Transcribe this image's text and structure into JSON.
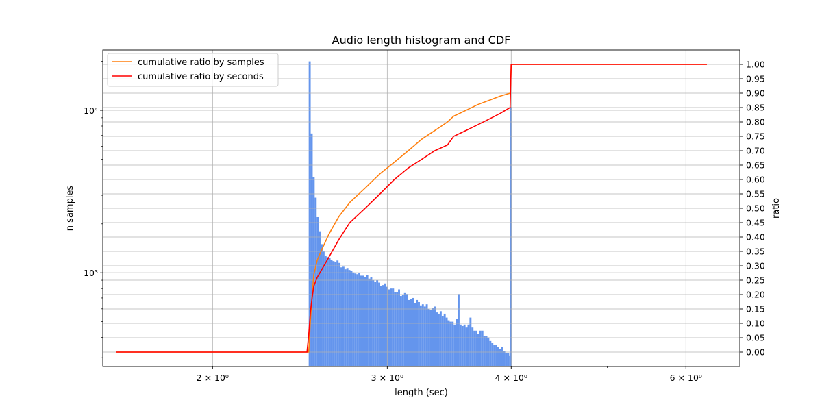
{
  "chart_data": {
    "type": "bar",
    "title": "Audio length histogram and CDF",
    "xlabel": "length (sec)",
    "ylabel": "n samples",
    "y2label": "ratio",
    "xscale": "log",
    "yscale": "log",
    "xlim": [
      1.55,
      6.8
    ],
    "ylim": [
      265,
      23500
    ],
    "y2lim": [
      -0.05,
      1.05
    ],
    "grid": true,
    "legend_position": "top-left",
    "x_ticks": [
      {
        "value": 2,
        "label": "2 × 10⁰"
      },
      {
        "value": 3,
        "label": "3 × 10⁰"
      },
      {
        "value": 4,
        "label": "4 × 10⁰"
      },
      {
        "value": 6,
        "label": "6 × 10⁰"
      }
    ],
    "x_minor_ticks": [
      5
    ],
    "y_ticks": [
      {
        "value": 1000,
        "label": "10³"
      },
      {
        "value": 10000,
        "label": "10⁴"
      }
    ],
    "y_minor_ticks": [
      300,
      400,
      500,
      600,
      700,
      800,
      900,
      2000,
      3000,
      4000,
      5000,
      6000,
      7000,
      8000,
      9000,
      20000
    ],
    "y2_ticks": [
      "0.00",
      "0.05",
      "0.10",
      "0.15",
      "0.20",
      "0.25",
      "0.30",
      "0.35",
      "0.40",
      "0.45",
      "0.50",
      "0.55",
      "0.60",
      "0.65",
      "0.70",
      "0.75",
      "0.80",
      "0.85",
      "0.90",
      "0.95",
      "1.00"
    ],
    "histogram": {
      "color": "#6495ED",
      "bin_edges": [
        2.5,
        4.0
      ],
      "bin_count": 102,
      "last_bin": {
        "x_start": 3.99,
        "x_end": 4.005,
        "count": 10500
      },
      "counts": [
        20000,
        7200,
        3900,
        2900,
        2200,
        1800,
        1500,
        1350,
        1270,
        1250,
        1230,
        1200,
        1180,
        1170,
        1190,
        1150,
        1080,
        1090,
        1050,
        1070,
        1040,
        1030,
        1005,
        990,
        980,
        1000,
        960,
        960,
        940,
        970,
        920,
        940,
        900,
        880,
        900,
        870,
        830,
        840,
        860,
        820,
        790,
        800,
        800,
        760,
        760,
        790,
        720,
        730,
        750,
        740,
        680,
        690,
        700,
        650,
        680,
        660,
        630,
        640,
        620,
        640,
        600,
        590,
        610,
        620,
        570,
        560,
        580,
        540,
        560,
        530,
        510,
        500,
        500,
        480,
        520,
        740,
        480,
        470,
        480,
        460,
        480,
        530,
        460,
        440,
        440,
        420,
        440,
        440,
        410,
        410,
        400,
        380,
        370,
        360,
        360,
        350,
        340,
        350,
        330,
        320,
        320,
        310
      ]
    },
    "series": [
      {
        "name": "cumulative ratio by samples",
        "color": "#ff7f0e",
        "axis": "right",
        "x": [
          1.6,
          2.5,
          2.51,
          2.52,
          2.53,
          2.55,
          2.58,
          2.62,
          2.68,
          2.75,
          2.85,
          2.95,
          3.05,
          3.15,
          3.25,
          3.35,
          3.45,
          3.5,
          3.6,
          3.7,
          3.8,
          3.9,
          3.99,
          3.995,
          4.0,
          4.01,
          6.3
        ],
        "y": [
          0.0,
          0.0,
          0.11,
          0.2,
          0.27,
          0.32,
          0.36,
          0.41,
          0.47,
          0.52,
          0.57,
          0.62,
          0.66,
          0.7,
          0.74,
          0.77,
          0.8,
          0.82,
          0.84,
          0.86,
          0.875,
          0.89,
          0.9,
          0.93,
          1.0,
          1.0,
          1.0
        ]
      },
      {
        "name": "cumulative ratio by seconds",
        "color": "#ff0000",
        "axis": "right",
        "x": [
          1.6,
          2.49,
          2.5,
          2.51,
          2.52,
          2.53,
          2.55,
          2.58,
          2.62,
          2.68,
          2.75,
          2.85,
          2.95,
          3.05,
          3.15,
          3.25,
          3.35,
          3.45,
          3.5,
          3.6,
          3.7,
          3.8,
          3.9,
          3.99,
          4.0,
          4.01,
          6.3
        ],
        "y": [
          0.0,
          0.0,
          0.06,
          0.14,
          0.19,
          0.23,
          0.26,
          0.29,
          0.33,
          0.39,
          0.45,
          0.5,
          0.55,
          0.6,
          0.64,
          0.67,
          0.7,
          0.72,
          0.75,
          0.77,
          0.79,
          0.81,
          0.83,
          0.85,
          1.0,
          1.0,
          1.0
        ]
      }
    ]
  }
}
